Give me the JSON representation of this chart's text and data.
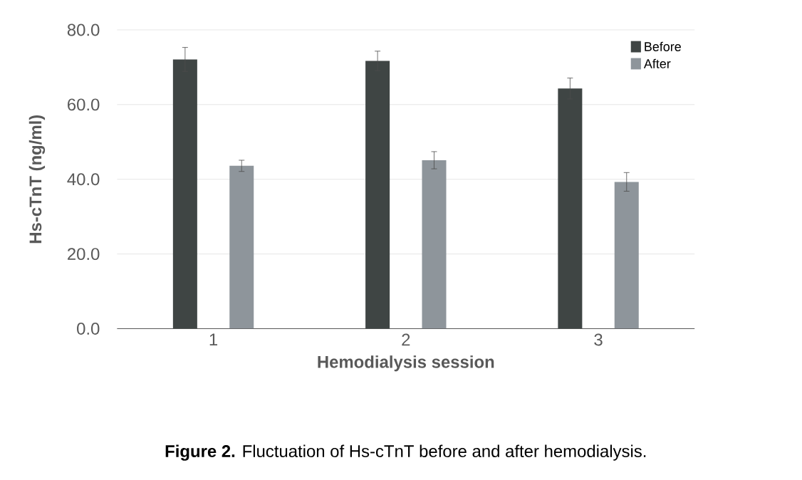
{
  "chart_data": {
    "type": "bar",
    "xlabel": "Hemodialysis session",
    "ylabel": "Hs-cTnT (ng/ml)",
    "categories": [
      "1",
      "2",
      "3"
    ],
    "series": [
      {
        "name": "Before",
        "color": "#3f4544",
        "values": [
          72.1,
          71.7,
          64.3
        ],
        "errors": [
          3.2,
          2.6,
          2.8
        ]
      },
      {
        "name": "After",
        "color": "#8e959b",
        "values": [
          43.6,
          45.1,
          39.3
        ],
        "errors": [
          1.5,
          2.3,
          2.5
        ]
      }
    ],
    "ylim": [
      0,
      80
    ],
    "yticks": [
      {
        "value": 0,
        "label": "0.0"
      },
      {
        "value": 20,
        "label": "20.0"
      },
      {
        "value": 40,
        "label": "40.0"
      },
      {
        "value": 60,
        "label": "60.0"
      },
      {
        "value": 80,
        "label": "80.0"
      }
    ],
    "grid": "y",
    "legend": "top right",
    "annotations": [
      "**Figure 2.** Fluctuation of Hs-cTnT before and after hemodialysis."
    ]
  }
}
